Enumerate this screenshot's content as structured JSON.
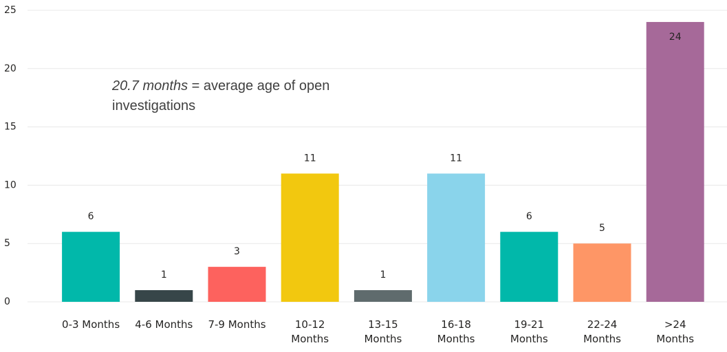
{
  "chart_data": {
    "type": "bar",
    "categories": [
      "0-3 Months",
      "4-6 Months",
      "7-9 Months",
      "10-12 Months",
      "13-15 Months",
      "16-18 Months",
      "19-21 Months",
      "22-24 Months",
      ">24 Months"
    ],
    "values": [
      6,
      1,
      3,
      11,
      1,
      11,
      6,
      5,
      24
    ],
    "colors": [
      "#01B8AA",
      "#374649",
      "#FD625E",
      "#F2C80F",
      "#5F6B6D",
      "#8AD4EB",
      "#01B8AA",
      "#FE9666",
      "#A66999"
    ],
    "ylim": [
      0,
      25
    ],
    "yticks": [
      0,
      5,
      10,
      15,
      20,
      25
    ],
    "grid": true,
    "annotation": {
      "emphasis": "20.7 months",
      "text": "= average age of open investigations"
    }
  }
}
